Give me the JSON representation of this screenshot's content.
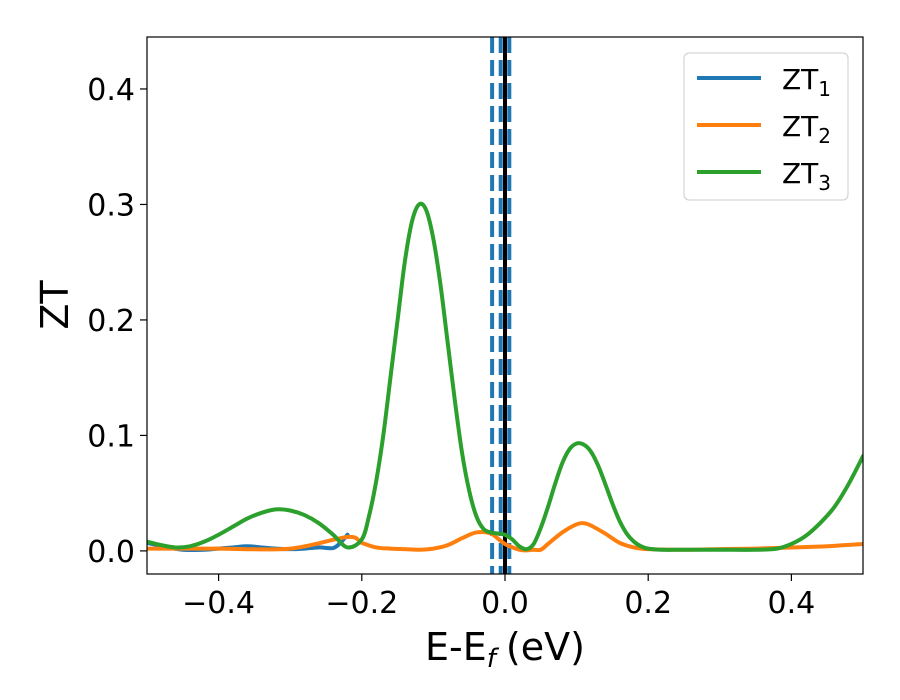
{
  "chart_data": {
    "type": "line",
    "xlabel": "E-E",
    "xlabel_sub": "f",
    "xlabel_unit": "(eV)",
    "ylabel": "ZT",
    "xlim": [
      -0.5,
      0.5
    ],
    "ylim": [
      -0.02,
      0.445
    ],
    "xticks": [
      -0.4,
      -0.2,
      0.0,
      0.2,
      0.4
    ],
    "xtick_labels": [
      "−0.4",
      "−0.2",
      "0.0",
      "0.2",
      "0.4"
    ],
    "yticks": [
      0.0,
      0.1,
      0.2,
      0.3,
      0.4
    ],
    "ytick_labels": [
      "0.0",
      "0.1",
      "0.2",
      "0.3",
      "0.4"
    ],
    "grid": false,
    "legend_position": "top-right",
    "colors": {
      "ZT1": "#1f77b4",
      "ZT2": "#ff7f0e",
      "ZT3": "#2ca02c",
      "fermi": "#000000",
      "markers": "#1f77b4"
    },
    "series": [
      {
        "name": "ZT",
        "name_sub": "1",
        "color": "#1f77b4",
        "x": [
          -0.5,
          -0.47,
          -0.45,
          -0.42,
          -0.4,
          -0.38,
          -0.36,
          -0.34,
          -0.32,
          -0.3,
          -0.28,
          -0.26,
          -0.24,
          -0.23,
          -0.22
        ],
        "y": [
          0.007,
          0.003,
          0.001,
          0.001,
          0.002,
          0.003,
          0.004,
          0.003,
          0.002,
          0.0015,
          0.002,
          0.003,
          0.0025,
          0.007,
          0.014
        ]
      },
      {
        "name": "ZT",
        "name_sub": "2",
        "color": "#ff7f0e",
        "x": [
          -0.5,
          -0.45,
          -0.4,
          -0.3,
          -0.22,
          -0.2,
          -0.18,
          -0.16,
          -0.14,
          -0.12,
          -0.1,
          -0.08,
          -0.06,
          -0.04,
          -0.02,
          0.0,
          0.02,
          0.03,
          0.04,
          0.05,
          0.06,
          0.08,
          0.1,
          0.11,
          0.12,
          0.14,
          0.16,
          0.18,
          0.2,
          0.25,
          0.3,
          0.35,
          0.4,
          0.45,
          0.5
        ],
        "y": [
          0.002,
          0.002,
          0.002,
          0.002,
          0.012,
          0.007,
          0.003,
          0.002,
          0.0015,
          0.001,
          0.002,
          0.005,
          0.011,
          0.016,
          0.015,
          0.006,
          0.001,
          0.0005,
          0.001,
          0.001,
          0.006,
          0.016,
          0.023,
          0.024,
          0.022,
          0.015,
          0.007,
          0.003,
          0.0015,
          0.001,
          0.0015,
          0.002,
          0.003,
          0.004,
          0.006
        ]
      },
      {
        "name": "ZT",
        "name_sub": "3",
        "color": "#2ca02c",
        "x": [
          -0.5,
          -0.48,
          -0.46,
          -0.44,
          -0.42,
          -0.4,
          -0.38,
          -0.36,
          -0.34,
          -0.32,
          -0.3,
          -0.28,
          -0.26,
          -0.24,
          -0.22,
          -0.2,
          -0.19,
          -0.18,
          -0.17,
          -0.16,
          -0.15,
          -0.14,
          -0.13,
          -0.12,
          -0.11,
          -0.1,
          -0.09,
          -0.08,
          -0.07,
          -0.06,
          -0.05,
          -0.04,
          -0.03,
          -0.02,
          -0.01,
          0.0,
          0.01,
          0.02,
          0.03,
          0.04,
          0.05,
          0.06,
          0.07,
          0.08,
          0.09,
          0.1,
          0.11,
          0.12,
          0.13,
          0.14,
          0.15,
          0.16,
          0.17,
          0.18,
          0.19,
          0.2,
          0.22,
          0.25,
          0.3,
          0.35,
          0.38,
          0.4,
          0.42,
          0.44,
          0.46,
          0.48,
          0.5
        ],
        "y": [
          0.008,
          0.005,
          0.003,
          0.004,
          0.008,
          0.014,
          0.021,
          0.028,
          0.033,
          0.036,
          0.035,
          0.031,
          0.024,
          0.014,
          0.003,
          0.01,
          0.03,
          0.06,
          0.1,
          0.15,
          0.2,
          0.25,
          0.285,
          0.3,
          0.295,
          0.27,
          0.23,
          0.18,
          0.13,
          0.085,
          0.052,
          0.03,
          0.019,
          0.016,
          0.015,
          0.014,
          0.01,
          0.004,
          0.0015,
          0.006,
          0.02,
          0.038,
          0.058,
          0.076,
          0.088,
          0.093,
          0.092,
          0.086,
          0.074,
          0.058,
          0.041,
          0.026,
          0.015,
          0.008,
          0.004,
          0.002,
          0.001,
          0.001,
          0.001,
          0.001,
          0.002,
          0.006,
          0.013,
          0.024,
          0.038,
          0.058,
          0.082
        ]
      }
    ],
    "vlines": [
      {
        "x": -0.018,
        "style": "dashed",
        "color": "#1f77b4"
      },
      {
        "x": -0.006,
        "style": "dashed",
        "color": "#1f77b4"
      },
      {
        "x": 0.006,
        "style": "dashed",
        "color": "#1f77b4"
      },
      {
        "x": 0.0,
        "style": "solid",
        "color": "#000000"
      }
    ]
  }
}
